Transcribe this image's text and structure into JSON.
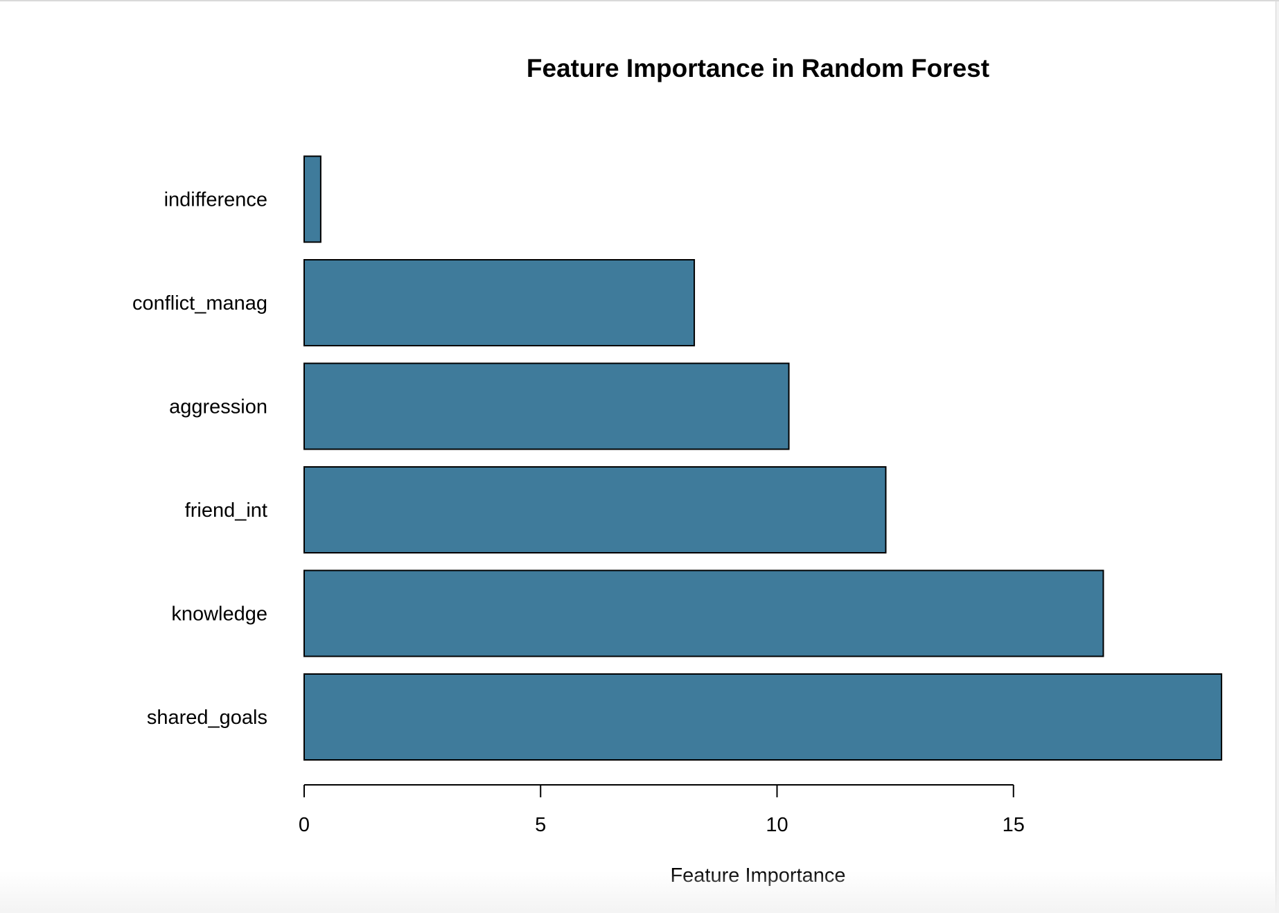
{
  "chart_data": {
    "type": "bar",
    "orientation": "horizontal",
    "title": "Feature Importance in Random Forest",
    "xlabel": "Feature Importance",
    "ylabel": "",
    "categories": [
      "shared_goals",
      "knowledge",
      "friend_int",
      "aggression",
      "conflict_manag",
      "indifference"
    ],
    "values": [
      19.4,
      16.9,
      12.3,
      10.25,
      8.25,
      0.35
    ],
    "xlim": [
      0,
      19.4
    ],
    "xticks": [
      "0",
      "5",
      "10",
      "15"
    ],
    "bar_color": "#3f7b9b",
    "bar_edge_color": "#000000",
    "grid": false,
    "legend": "none"
  }
}
